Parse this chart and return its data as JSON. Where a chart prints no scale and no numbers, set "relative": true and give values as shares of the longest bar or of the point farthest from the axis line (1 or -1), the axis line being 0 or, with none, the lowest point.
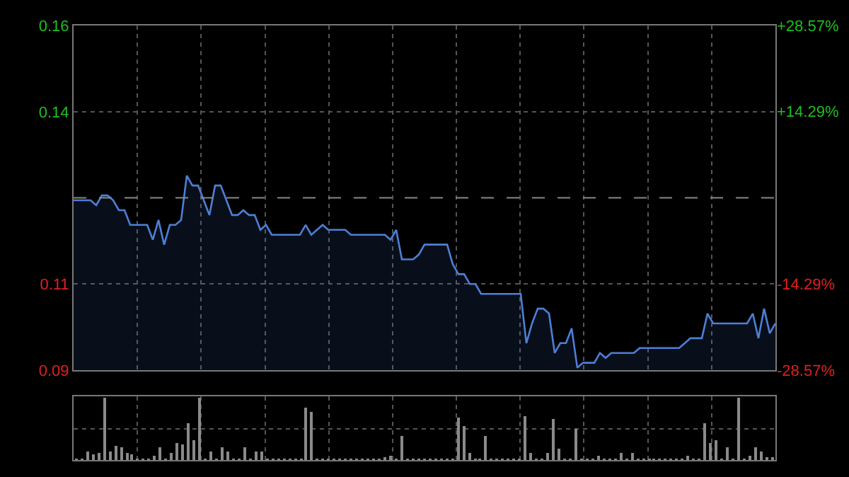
{
  "chart_data": [
    {
      "type": "area",
      "categories": [
        null,
        null,
        null,
        null,
        null,
        null,
        null,
        null,
        null,
        null,
        null,
        null,
        null,
        null,
        null,
        null,
        null,
        null,
        null,
        null,
        null,
        null,
        null,
        null,
        null,
        null,
        null,
        null,
        null,
        null,
        null,
        null,
        null,
        null,
        null,
        null,
        null,
        null,
        null,
        null,
        null,
        null,
        null,
        null,
        null,
        null,
        null,
        null,
        null,
        null,
        null,
        null,
        null,
        null,
        null,
        null,
        null,
        null,
        null,
        null,
        null,
        null,
        null,
        null,
        null,
        null,
        null,
        null,
        null,
        null,
        null,
        null,
        null,
        null,
        null,
        null,
        null,
        null,
        null,
        null,
        null,
        null,
        null,
        null,
        null,
        null,
        null,
        null,
        null,
        null,
        null,
        null,
        null,
        null,
        null,
        null,
        null,
        null,
        null,
        null,
        null,
        null,
        null,
        null,
        null,
        null,
        null,
        null,
        null,
        null,
        null,
        null,
        null,
        null,
        null,
        null,
        null,
        null,
        null,
        null,
        null,
        null,
        null,
        null,
        null
      ],
      "series": [
        {
          "color": "#4d7fd6",
          "values": [
            0.122,
            0.122,
            0.122,
            0.122,
            0.121,
            0.123,
            0.123,
            0.122,
            0.12,
            0.12,
            0.117,
            0.117,
            0.117,
            0.117,
            0.114,
            0.118,
            0.113,
            0.117,
            0.117,
            0.118,
            0.127,
            0.125,
            0.125,
            0.122,
            0.119,
            0.125,
            0.125,
            0.122,
            0.119,
            0.119,
            0.12,
            0.119,
            0.119,
            0.116,
            0.117,
            0.115,
            0.115,
            0.115,
            0.115,
            0.115,
            0.115,
            0.117,
            0.115,
            0.116,
            0.117,
            0.116,
            0.116,
            0.116,
            0.116,
            0.115,
            0.115,
            0.115,
            0.115,
            0.115,
            0.115,
            0.115,
            0.114,
            0.116,
            0.11,
            0.11,
            0.11,
            0.111,
            0.113,
            0.113,
            0.113,
            0.113,
            0.113,
            0.109,
            0.107,
            0.107,
            0.105,
            0.105,
            0.103,
            0.103,
            0.103,
            0.103,
            0.103,
            0.103,
            0.103,
            0.103,
            0.093,
            0.097,
            0.1,
            0.1,
            0.099,
            0.091,
            0.093,
            0.093,
            0.096,
            0.088,
            0.089,
            0.089,
            0.089,
            0.091,
            0.09,
            0.091,
            0.091,
            0.091,
            0.091,
            0.091,
            0.092,
            0.092,
            0.092,
            0.092,
            0.092,
            0.092,
            0.092,
            0.092,
            0.093,
            0.094,
            0.094,
            0.094,
            0.099,
            0.097,
            0.097,
            0.097,
            0.097,
            0.097,
            0.097,
            0.097,
            0.099,
            0.094,
            0.1,
            0.095,
            0.097
          ]
        }
      ],
      "ylim": [
        0.0875,
        0.1575
      ],
      "yticks": [
        {
          "value": 0.1575,
          "label": "0.16"
        },
        {
          "value": 0.14,
          "label": "0.14"
        },
        {
          "value": 0.105,
          "label": "0.11"
        },
        {
          "value": 0.0875,
          "label": "0.09"
        }
      ],
      "y2lim": [
        -28.57,
        28.57
      ],
      "y2ticks": [
        {
          "value": 28.57,
          "label": "+28.57%"
        },
        {
          "value": 14.29,
          "label": "+14.29%"
        },
        {
          "value": -14.29,
          "label": "-14.29%"
        },
        {
          "value": -28.57,
          "label": "-28.57%"
        }
      ],
      "ref_lines": [
        {
          "axis": "y",
          "value": 0.1225,
          "line_style": "dashed",
          "color": "#888888"
        }
      ],
      "grid": true,
      "tick_labels": "y"
    },
    {
      "type": "bar",
      "relative": true,
      "grid": true,
      "tick_labels": false,
      "color": "#8a8a8a",
      "categories": [
        null,
        null,
        null,
        null,
        null,
        null,
        null,
        null,
        null,
        null,
        null,
        null,
        null,
        null,
        null,
        null,
        null,
        null,
        null,
        null,
        null,
        null,
        null,
        null,
        null,
        null,
        null,
        null,
        null,
        null,
        null,
        null,
        null,
        null,
        null,
        null,
        null,
        null,
        null,
        null,
        null,
        null,
        null,
        null,
        null,
        null,
        null,
        null,
        null,
        null,
        null,
        null,
        null,
        null,
        null,
        null,
        null,
        null,
        null,
        null,
        null,
        null,
        null,
        null,
        null,
        null,
        null,
        null,
        null,
        null,
        null,
        null,
        null,
        null,
        null,
        null,
        null,
        null,
        null,
        null,
        null,
        null,
        null,
        null,
        null,
        null,
        null,
        null,
        null,
        null,
        null,
        null,
        null,
        null,
        null,
        null,
        null,
        null,
        null,
        null,
        null,
        null,
        null,
        null,
        null,
        null,
        null,
        null,
        null,
        null,
        null,
        null,
        null,
        null,
        null,
        null,
        null,
        null,
        null,
        null,
        null,
        null,
        null,
        null,
        null
      ],
      "values": [
        0.02,
        0.02,
        0.14,
        0.1,
        0.13,
        1.0,
        0.15,
        0.24,
        0.2,
        0.12,
        0.1,
        0.02,
        0.02,
        0.02,
        0.08,
        0.2,
        0.02,
        0.13,
        0.27,
        0.25,
        0.6,
        0.32,
        1.0,
        0.02,
        0.15,
        0.02,
        0.2,
        0.15,
        0.02,
        0.02,
        0.2,
        0.02,
        0.15,
        0.15,
        0.02,
        0.02,
        0.02,
        0.02,
        0.02,
        0.02,
        0.02,
        0.85,
        0.77,
        0.02,
        0.02,
        0.02,
        0.02,
        0.02,
        0.02,
        0.02,
        0.02,
        0.02,
        0.02,
        0.02,
        0.02,
        0.06,
        0.08,
        0.02,
        0.4,
        0.02,
        0.02,
        0.02,
        0.02,
        0.02,
        0.02,
        0.02,
        0.02,
        0.02,
        0.68,
        0.54,
        0.13,
        0.02,
        0.02,
        0.4,
        0.02,
        0.02,
        0.02,
        0.02,
        0.02,
        0.02,
        0.7,
        0.12,
        0.02,
        0.02,
        0.13,
        0.66,
        0.18,
        0.02,
        0.02,
        0.51,
        0.02,
        0.02,
        0.02,
        0.08,
        0.02,
        0.02,
        0.02,
        0.12,
        0.02,
        0.12,
        0.02,
        0.02,
        0.02,
        0.02,
        0.02,
        0.02,
        0.02,
        0.02,
        0.02,
        0.08,
        0.02,
        0.02,
        0.6,
        0.27,
        0.32,
        0.02,
        0.2,
        0.02,
        1.0,
        0.02,
        0.08,
        0.2,
        0.15,
        0.05,
        0.05
      ]
    }
  ]
}
